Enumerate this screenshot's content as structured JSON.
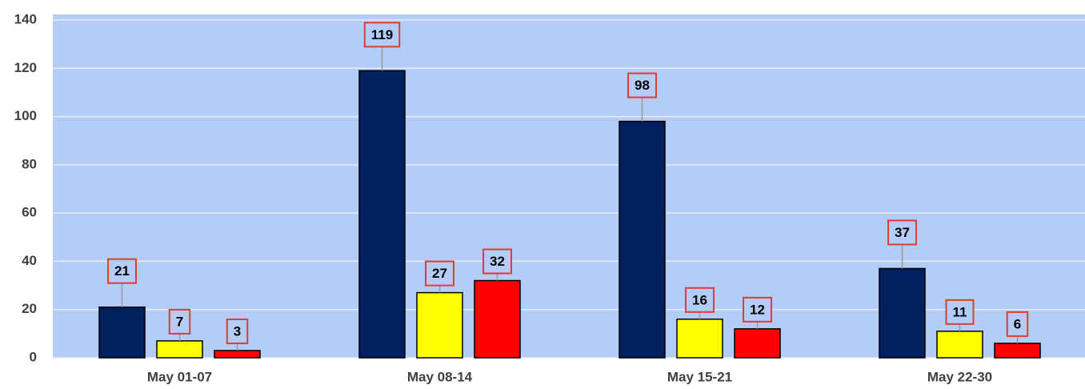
{
  "chart_data": {
    "type": "bar",
    "categories": [
      "May 01-07",
      "May 08-14",
      "May 15-21",
      "May 22-30"
    ],
    "series": [
      {
        "color": "#002060",
        "values": [
          21,
          119,
          98,
          37
        ]
      },
      {
        "color": "#ffff00",
        "values": [
          7,
          27,
          16,
          11
        ]
      },
      {
        "color": "#ff0000",
        "values": [
          3,
          32,
          12,
          6
        ]
      }
    ],
    "ylim": [
      0,
      140
    ],
    "yticks": [
      0,
      20,
      40,
      60,
      80,
      100,
      120,
      140
    ],
    "grid": true
  }
}
